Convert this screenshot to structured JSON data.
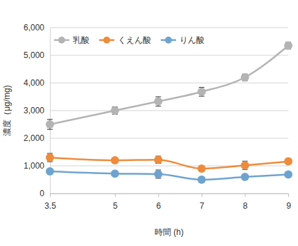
{
  "chart_data": {
    "type": "line",
    "x_label": "時間 (h)",
    "y_label": "濃度（μg/mg)",
    "x": [
      3.5,
      5,
      6,
      7,
      8,
      9
    ],
    "series": [
      {
        "name": "乳酸",
        "color": "#b4b4b4",
        "marker": "circle",
        "line_style": "smooth",
        "values": [
          2500,
          3000,
          3330,
          3680,
          4200,
          5350
        ],
        "errors": [
          180,
          130,
          170,
          160,
          120,
          120
        ]
      },
      {
        "name": "くえん酸",
        "color": "#ed8c3c",
        "marker": "circle",
        "line_style": "smooth",
        "values": [
          1300,
          1200,
          1220,
          900,
          1020,
          1160
        ],
        "errors": [
          150,
          80,
          130,
          60,
          150,
          60
        ]
      },
      {
        "name": "りん酸",
        "color": "#6fa3cf",
        "marker": "circle",
        "line_style": "smooth",
        "values": [
          800,
          720,
          700,
          500,
          600,
          690
        ],
        "errors": [
          60,
          60,
          150,
          90,
          80,
          70
        ]
      }
    ],
    "xlim": [
      3.5,
      9
    ],
    "xticks": [
      3.5,
      5,
      6,
      7,
      8,
      9
    ],
    "ylim": [
      0,
      6000
    ],
    "yticks": [
      {
        "value": 0,
        "label": "0"
      },
      {
        "value": 1000,
        "label": "1,000"
      },
      {
        "value": 2000,
        "label": "2,000"
      },
      {
        "value": 3000,
        "label": "3,000"
      },
      {
        "value": 4000,
        "label": "4,000"
      },
      {
        "value": 5000,
        "label": "5,000"
      },
      {
        "value": 6000,
        "label": "6,000"
      }
    ],
    "grid": true,
    "legend": "upper left"
  }
}
